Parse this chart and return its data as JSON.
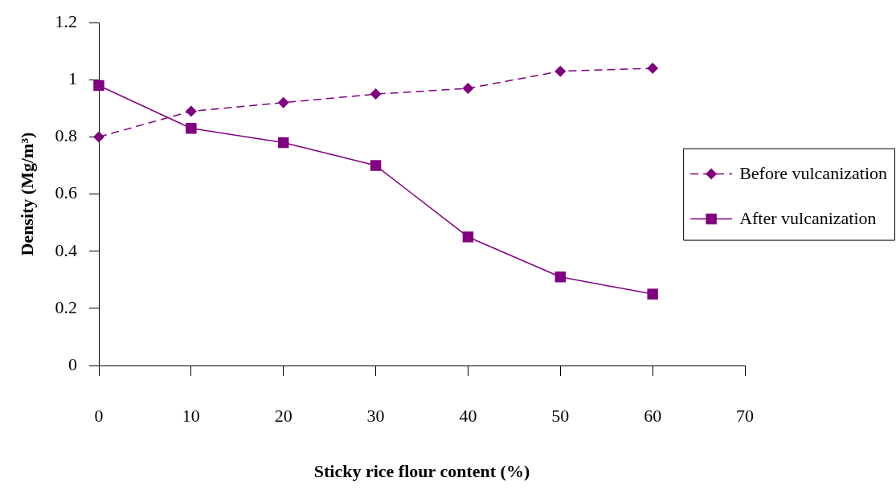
{
  "chart_data": {
    "type": "line",
    "xlabel": "Sticky rice flour content (%)",
    "ylabel": "Density (Mg/m³)",
    "x": [
      0,
      10,
      20,
      30,
      40,
      50,
      60
    ],
    "xlim": [
      0,
      70
    ],
    "xticks": [
      0,
      10,
      20,
      30,
      40,
      50,
      60,
      70
    ],
    "ylim": [
      0,
      1.2
    ],
    "yticks": [
      0,
      0.2,
      0.4,
      0.6,
      0.8,
      1,
      1.2
    ],
    "legend": "right",
    "series": [
      {
        "name": "Before vulcanization",
        "color": "#800080",
        "marker": "diamond",
        "line_style": "dashed",
        "values": [
          0.8,
          0.89,
          0.92,
          0.95,
          0.97,
          1.03,
          1.04
        ]
      },
      {
        "name": "After vulcanization",
        "color": "#800080",
        "marker": "square",
        "line_style": "solid",
        "values": [
          0.98,
          0.83,
          0.78,
          0.7,
          0.45,
          0.31,
          0.25
        ]
      }
    ]
  }
}
